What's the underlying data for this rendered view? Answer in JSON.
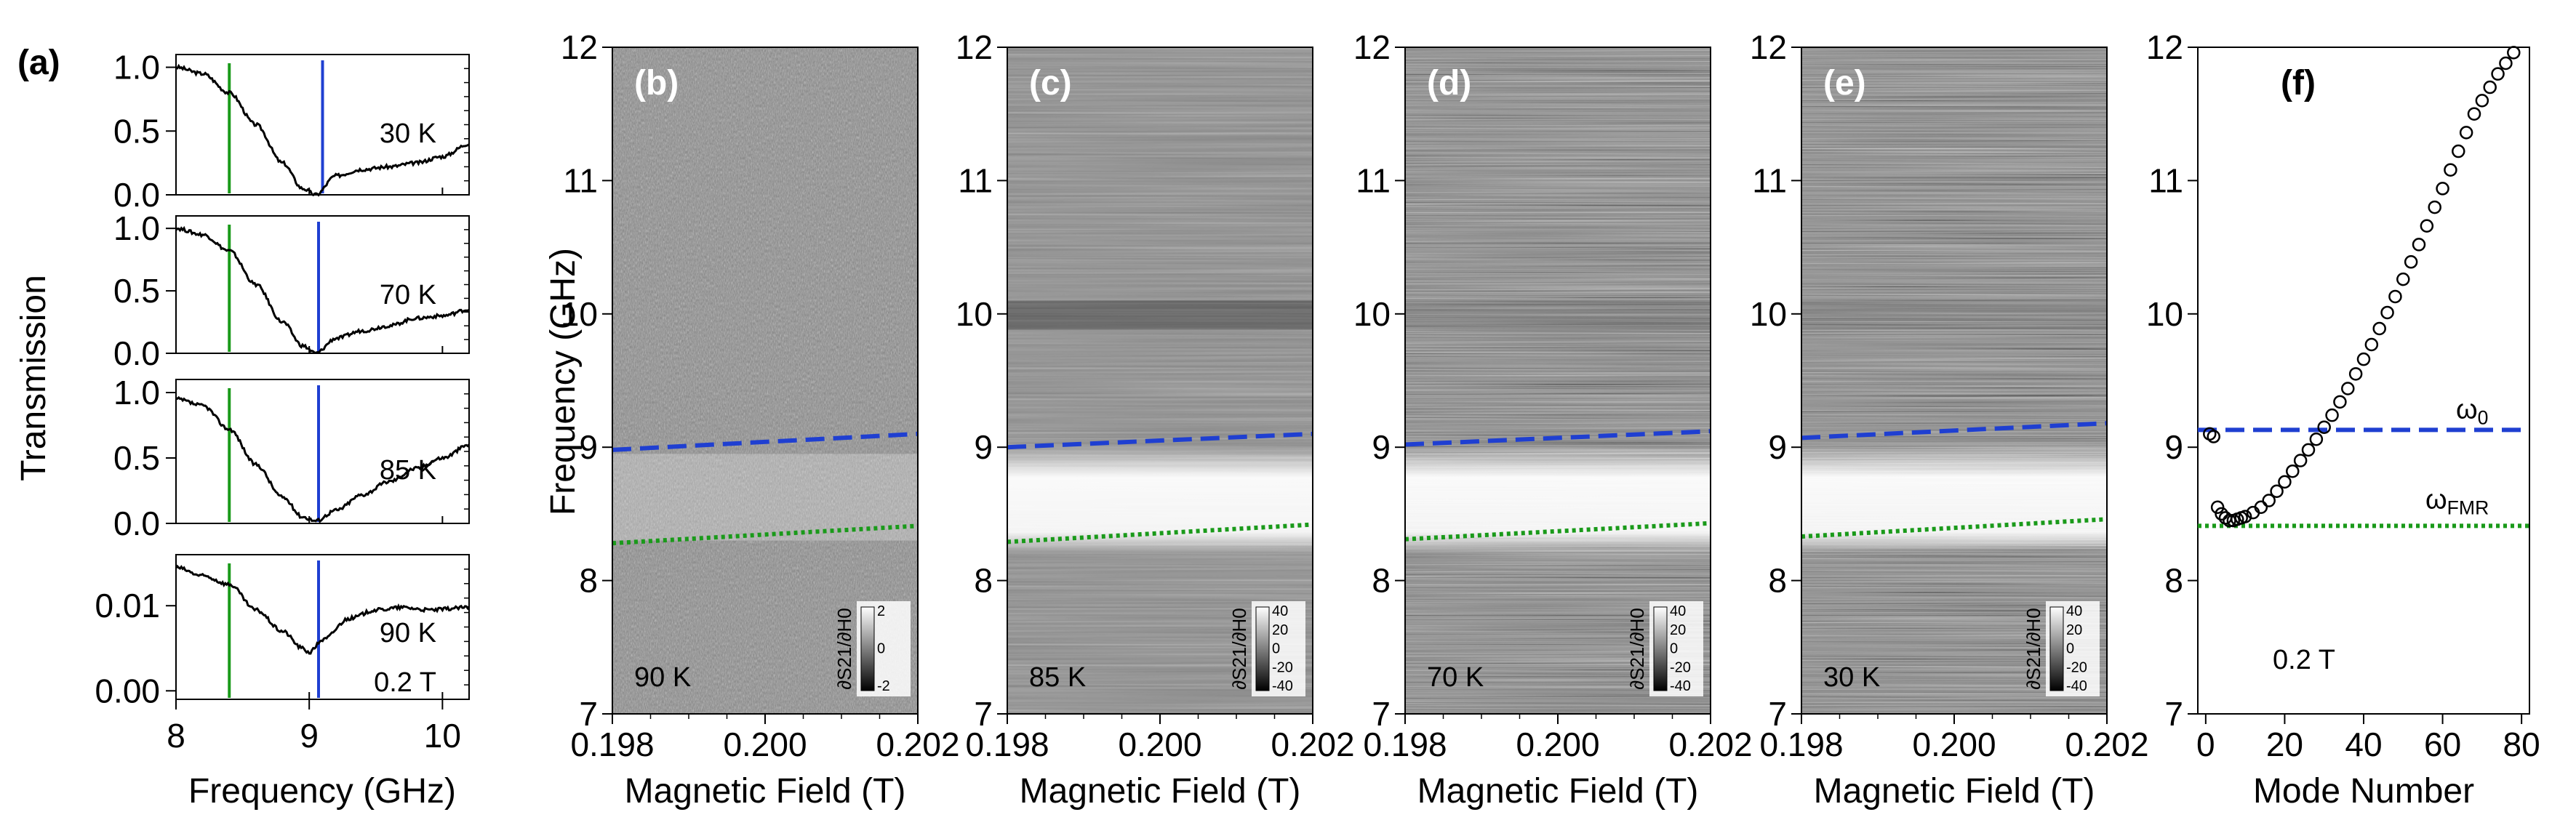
{
  "chart_data": [
    {
      "panel": "a",
      "type": "line",
      "label": "(a)",
      "xlabel": "Frequency (GHz)",
      "ylabel": "Transmission",
      "xlim": [
        8,
        10.2
      ],
      "xticks": [
        "8",
        "9",
        "10"
      ],
      "green_line_freq": 8.4,
      "blue_line_freq": 9.07,
      "subplots": [
        {
          "temperature": "30 K",
          "ylim": [
            0,
            1.1
          ],
          "yticks": [
            "0.0",
            "0.5",
            "1.0"
          ],
          "blue_line_freq": 9.1,
          "x": [
            8.0,
            8.2,
            8.4,
            8.6,
            8.8,
            8.95,
            9.05,
            9.2,
            9.4,
            9.6,
            9.8,
            10.0,
            10.2
          ],
          "y": [
            1.0,
            0.95,
            0.8,
            0.55,
            0.25,
            0.05,
            0.0,
            0.15,
            0.2,
            0.22,
            0.25,
            0.3,
            0.4
          ]
        },
        {
          "temperature": "70 K",
          "ylim": [
            0,
            1.1
          ],
          "yticks": [
            "0.0",
            "0.5",
            "1.0"
          ],
          "x": [
            8.0,
            8.2,
            8.4,
            8.6,
            8.8,
            8.95,
            9.05,
            9.2,
            9.4,
            9.6,
            9.8,
            10.0,
            10.2
          ],
          "y": [
            1.0,
            0.95,
            0.82,
            0.55,
            0.25,
            0.06,
            0.0,
            0.12,
            0.18,
            0.22,
            0.28,
            0.3,
            0.35
          ]
        },
        {
          "temperature": "85 K",
          "ylim": [
            0,
            1.1
          ],
          "yticks": [
            "0.0",
            "0.5",
            "1.0"
          ],
          "x": [
            8.0,
            8.2,
            8.4,
            8.6,
            8.8,
            8.95,
            9.05,
            9.2,
            9.4,
            9.6,
            9.8,
            10.0,
            10.2
          ],
          "y": [
            0.95,
            0.9,
            0.72,
            0.45,
            0.2,
            0.05,
            0.02,
            0.1,
            0.22,
            0.32,
            0.42,
            0.5,
            0.6
          ]
        },
        {
          "temperature": "90 K",
          "field": "0.2 T",
          "ylim": [
            -0.001,
            0.016
          ],
          "yticks": [
            "0.00",
            "0.01"
          ],
          "x": [
            8.0,
            8.2,
            8.4,
            8.6,
            8.8,
            8.95,
            9.0,
            9.1,
            9.3,
            9.5,
            9.7,
            9.9,
            10.2
          ],
          "y": [
            0.0145,
            0.0135,
            0.0125,
            0.0095,
            0.007,
            0.005,
            0.0045,
            0.006,
            0.0085,
            0.0095,
            0.0098,
            0.0095,
            0.0098
          ]
        }
      ]
    },
    {
      "panel": "b",
      "type": "heatmap",
      "label": "(b)",
      "temperature": "90 K",
      "xlabel": "Magnetic Field (T)",
      "ylabel": "Frequency (GHz)",
      "xlim": [
        0.198,
        0.202
      ],
      "ylim": [
        7,
        12
      ],
      "xticks": [
        "0.198",
        "0.200",
        "0.202"
      ],
      "yticks": [
        "7",
        "8",
        "9",
        "10",
        "11",
        "12"
      ],
      "colorbar_label": "∂S21/∂H0",
      "colorbar_ticks": [
        "2",
        "0",
        "-2"
      ],
      "blue_dashed": [
        [
          0.198,
          8.98
        ],
        [
          0.202,
          9.1
        ]
      ],
      "green_dotted": [
        [
          0.198,
          8.28
        ],
        [
          0.202,
          8.41
        ]
      ]
    },
    {
      "panel": "c",
      "type": "heatmap",
      "label": "(c)",
      "temperature": "85 K",
      "xlabel": "Magnetic Field (T)",
      "xlim": [
        0.198,
        0.202
      ],
      "ylim": [
        7,
        12
      ],
      "xticks": [
        "0.198",
        "0.200",
        "0.202"
      ],
      "yticks": [
        "7",
        "8",
        "9",
        "10",
        "11",
        "12"
      ],
      "colorbar_label": "∂S21/∂H0",
      "colorbar_ticks": [
        "40",
        "20",
        "0",
        "-20",
        "-40"
      ],
      "blue_dashed": [
        [
          0.198,
          9.0
        ],
        [
          0.202,
          9.1
        ]
      ],
      "green_dotted": [
        [
          0.198,
          8.29
        ],
        [
          0.202,
          8.42
        ]
      ]
    },
    {
      "panel": "d",
      "type": "heatmap",
      "label": "(d)",
      "temperature": "70 K",
      "xlabel": "Magnetic Field (T)",
      "xlim": [
        0.198,
        0.202
      ],
      "ylim": [
        7,
        12
      ],
      "xticks": [
        "0.198",
        "0.200",
        "0.202"
      ],
      "yticks": [
        "7",
        "8",
        "9",
        "10",
        "11",
        "12"
      ],
      "colorbar_label": "∂S21/∂H0",
      "colorbar_ticks": [
        "40",
        "20",
        "0",
        "-20",
        "-40"
      ],
      "blue_dashed": [
        [
          0.198,
          9.02
        ],
        [
          0.202,
          9.12
        ]
      ],
      "green_dotted": [
        [
          0.198,
          8.31
        ],
        [
          0.202,
          8.43
        ]
      ]
    },
    {
      "panel": "e",
      "type": "heatmap",
      "label": "(e)",
      "temperature": "30 K",
      "xlabel": "Magnetic Field (T)",
      "xlim": [
        0.198,
        0.202
      ],
      "ylim": [
        7,
        12
      ],
      "xticks": [
        "0.198",
        "0.200",
        "0.202"
      ],
      "yticks": [
        "7",
        "8",
        "9",
        "10",
        "11",
        "12"
      ],
      "colorbar_label": "∂S21/∂H0",
      "colorbar_ticks": [
        "40",
        "20",
        "0",
        "-20",
        "-40"
      ],
      "blue_dashed": [
        [
          0.198,
          9.07
        ],
        [
          0.202,
          9.18
        ]
      ],
      "green_dotted": [
        [
          0.198,
          8.33
        ],
        [
          0.202,
          8.46
        ]
      ]
    },
    {
      "panel": "f",
      "type": "scatter",
      "label": "(f)",
      "field": "0.2 T",
      "xlabel": "Mode Number",
      "xlim": [
        -2,
        82
      ],
      "ylim": [
        7,
        12
      ],
      "xticks": [
        "0",
        "20",
        "40",
        "60",
        "80"
      ],
      "yticks": [
        "7",
        "8",
        "9",
        "10",
        "11",
        "12"
      ],
      "omega0": 9.13,
      "omega0_label": "ω0",
      "omegaFMR": 8.41,
      "omegaFMR_label": "ωFMR",
      "points": [
        [
          1,
          9.1
        ],
        [
          2,
          9.08
        ],
        [
          3,
          8.55
        ],
        [
          4,
          8.5
        ],
        [
          5,
          8.47
        ],
        [
          6,
          8.45
        ],
        [
          7,
          8.45
        ],
        [
          8,
          8.46
        ],
        [
          9,
          8.47
        ],
        [
          10,
          8.48
        ],
        [
          12,
          8.51
        ],
        [
          14,
          8.55
        ],
        [
          16,
          8.6
        ],
        [
          18,
          8.67
        ],
        [
          20,
          8.74
        ],
        [
          22,
          8.82
        ],
        [
          24,
          8.9
        ],
        [
          26,
          8.98
        ],
        [
          28,
          9.06
        ],
        [
          30,
          9.15
        ],
        [
          32,
          9.24
        ],
        [
          34,
          9.34
        ],
        [
          36,
          9.44
        ],
        [
          38,
          9.55
        ],
        [
          40,
          9.66
        ],
        [
          42,
          9.77
        ],
        [
          44,
          9.89
        ],
        [
          46,
          10.01
        ],
        [
          48,
          10.13
        ],
        [
          50,
          10.26
        ],
        [
          52,
          10.39
        ],
        [
          54,
          10.52
        ],
        [
          56,
          10.66
        ],
        [
          58,
          10.8
        ],
        [
          60,
          10.94
        ],
        [
          62,
          11.08
        ],
        [
          64,
          11.22
        ],
        [
          66,
          11.36
        ],
        [
          68,
          11.5
        ],
        [
          70,
          11.6
        ],
        [
          72,
          11.7
        ],
        [
          74,
          11.8
        ],
        [
          76,
          11.88
        ],
        [
          78,
          11.96
        ]
      ]
    }
  ]
}
